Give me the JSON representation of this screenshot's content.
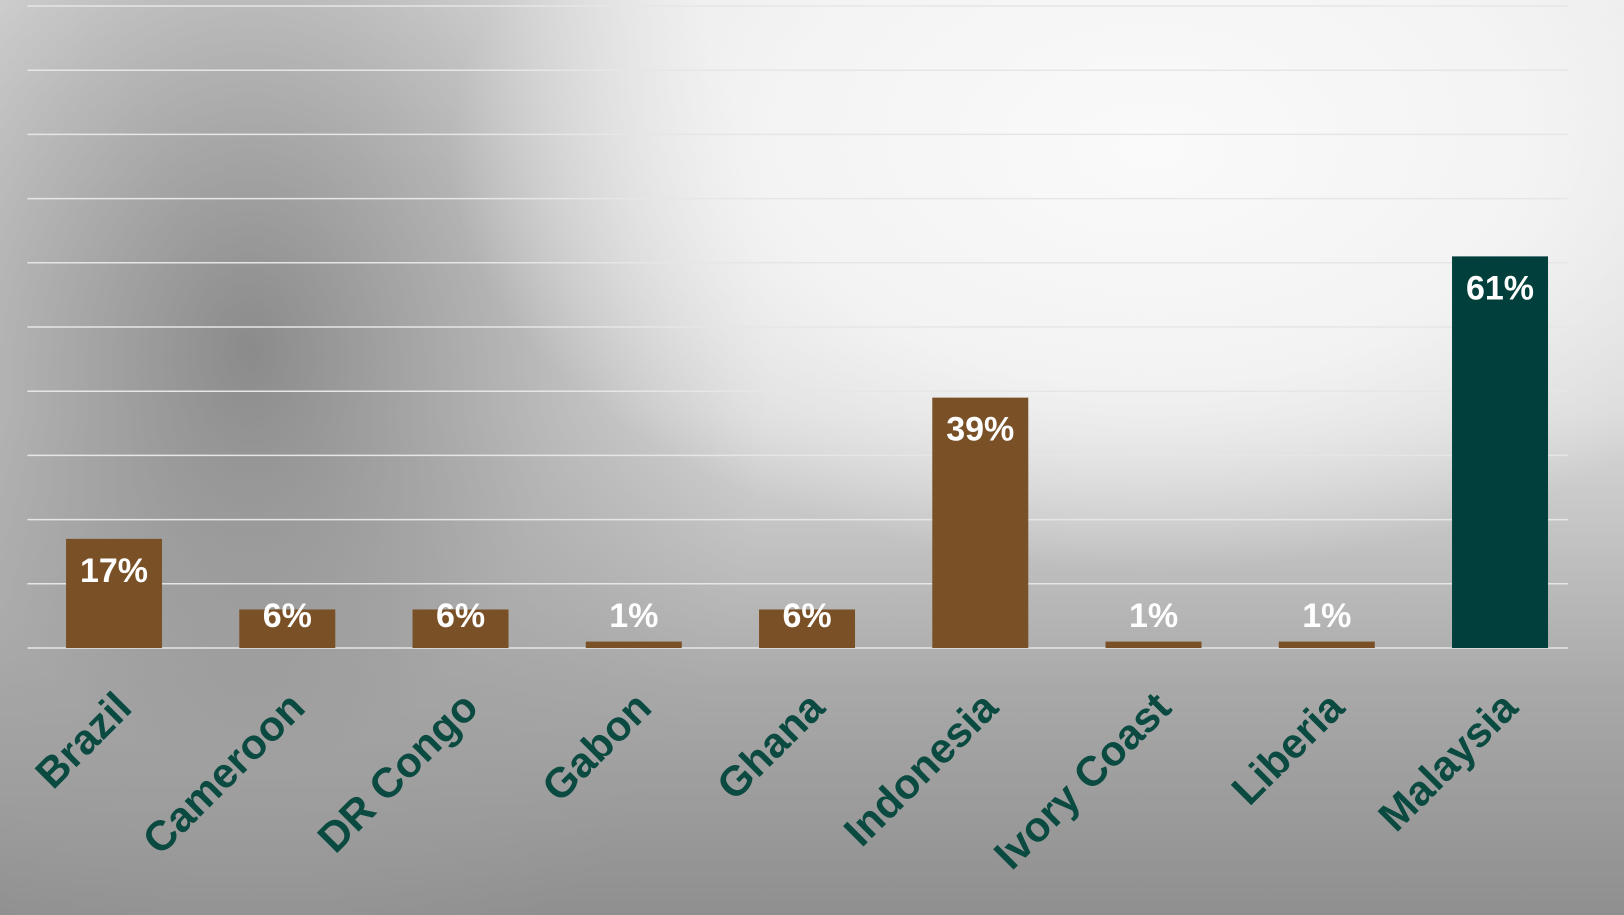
{
  "chart_data": {
    "type": "bar",
    "categories": [
      "Brazil",
      "Cameroon",
      "DR Congo",
      "Gabon",
      "Ghana",
      "Indonesia",
      "Ivory Coast",
      "Liberia",
      "Malaysia"
    ],
    "values": [
      17,
      6,
      6,
      1,
      6,
      39,
      1,
      1,
      61
    ],
    "value_labels": [
      "17%",
      "6%",
      "6%",
      "1%",
      "6%",
      "39%",
      "1%",
      "1%",
      "61%"
    ],
    "colors": [
      "#7a5127",
      "#7a5127",
      "#7a5127",
      "#7a5127",
      "#7a5127",
      "#7a5127",
      "#7a5127",
      "#7a5127",
      "#003f3b"
    ],
    "ylim": [
      0,
      100
    ],
    "yticks": [
      0,
      10,
      20,
      30,
      40,
      50,
      60,
      70,
      80,
      90,
      100
    ],
    "grid": true
  }
}
